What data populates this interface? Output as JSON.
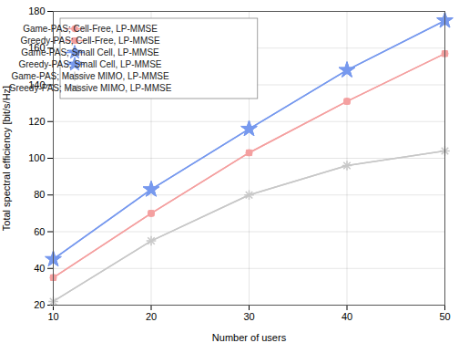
{
  "chart_data": {
    "type": "line",
    "x": [
      10,
      20,
      30,
      40,
      50
    ],
    "series": [
      {
        "name": "Game-PAS; Cell-Free, LP-MMSE",
        "color": "#f4a0a0",
        "marker": "circle",
        "line_style": "solid",
        "values": [
          35,
          70,
          103,
          131,
          157
        ]
      },
      {
        "name": "Greedy-PAS; Cell-Free, LP-MMSE",
        "color": "#f4a0a0",
        "marker": "square",
        "line_style": "solid",
        "values": [
          35,
          70,
          103,
          131,
          157
        ]
      },
      {
        "name": "Game-PAS; Small Cell, LP-MMSE",
        "color": "#7799ee",
        "marker": "star",
        "line_style": "solid",
        "values": [
          45,
          83,
          116,
          148,
          175
        ]
      },
      {
        "name": "Greedy-PAS; Small Cell, LP-MMSE",
        "color": "#7799ee",
        "marker": "star",
        "line_style": "solid",
        "values": [
          45,
          83,
          116,
          148,
          175
        ]
      },
      {
        "name": "Game-PAS; Massive MIMO, LP-MMSE",
        "color": "#c8c8c8",
        "marker": "plus",
        "line_style": "solid",
        "values": [
          22,
          55,
          80,
          96,
          104
        ]
      },
      {
        "name": "Greedy-PAS; Massive MIMO, LP-MMSE",
        "color": "#c8c8c8",
        "marker": "x",
        "line_style": "solid",
        "values": [
          22,
          55,
          80,
          96,
          104
        ]
      }
    ],
    "xlabel": "Number of users",
    "ylabel": "Total spectral efficiency [bit/s/Hz]",
    "xlim": [
      10,
      50
    ],
    "ylim": [
      20,
      180
    ],
    "xticks": [
      10,
      20,
      30,
      40,
      50
    ],
    "yticks": [
      20,
      40,
      60,
      80,
      100,
      120,
      140,
      160,
      180
    ],
    "grid": true,
    "legend": "upper left"
  }
}
